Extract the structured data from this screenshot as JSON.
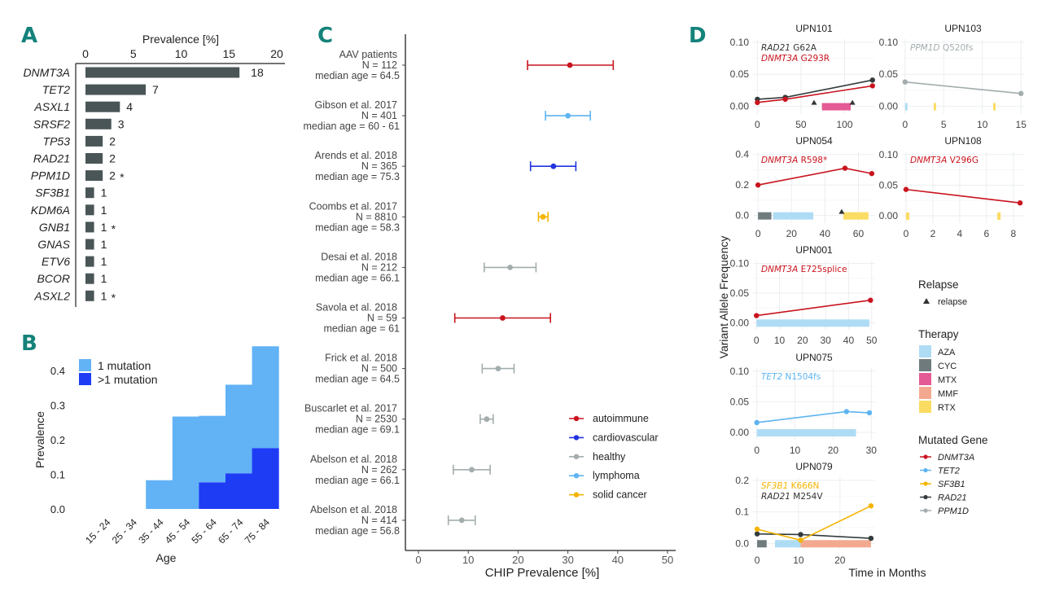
{
  "panel_letters": {
    "a": "A",
    "b": "B",
    "c": "C",
    "d": "D"
  },
  "colors": {
    "bar": "#4a5557",
    "one_mutation": "#62b2f6",
    "multi_mutation": "#1f3cf5",
    "autoimmune": "#c9141e",
    "cardiovascular": "#2233e0",
    "healthy": "#a3adad",
    "lymphoma": "#5db4f0",
    "solid_cancer": "#f5b400",
    "AZA": "#aedcf5",
    "CYC": "#6f7b7d",
    "MTX": "#e45a94",
    "MMF": "#f3a98f",
    "RTX": "#fbdc62",
    "DNMT3A": "#c9141e",
    "TET2": "#5db4f0",
    "SF3B1": "#f5b400",
    "RAD21": "#333b3d",
    "PPM1D": "#a3adad"
  },
  "chart_data": [
    {
      "id": "A",
      "type": "bar",
      "orientation": "horizontal",
      "title": "Prevalence [%]",
      "xlim": [
        0,
        20
      ],
      "xticks": [
        0,
        5,
        10,
        15,
        20
      ],
      "categories": [
        "DNMT3A",
        "TET2",
        "ASXL1",
        "SRSF2",
        "TP53",
        "RAD21",
        "PPM1D",
        "SF3B1",
        "KDM6A",
        "GNB1",
        "GNAS",
        "ETV6",
        "BCOR",
        "ASXL2"
      ],
      "values": [
        16.1,
        6.3,
        3.6,
        2.7,
        1.8,
        1.8,
        1.8,
        0.9,
        0.9,
        0.9,
        0.9,
        0.9,
        0.9,
        0.9
      ],
      "counts": [
        "18",
        "7",
        "4",
        "3",
        "2",
        "2",
        "2",
        "1",
        "1",
        "1",
        "1",
        "1",
        "1",
        "1"
      ],
      "asterisk": [
        false,
        false,
        false,
        false,
        false,
        false,
        true,
        false,
        false,
        true,
        false,
        false,
        false,
        true
      ]
    },
    {
      "id": "B",
      "type": "bar",
      "stacked": true,
      "xlabel": "Age",
      "ylabel": "Prevalence",
      "ylim": [
        0,
        0.47
      ],
      "yticks": [
        "0.0",
        "0.1",
        "0.2",
        "0.3",
        "0.4"
      ],
      "categories": [
        "15 - 24",
        "25 - 34",
        "35 - 44",
        "45 - 54",
        "55 - 64",
        "65 - 74",
        "75 - 84"
      ],
      "series": [
        {
          "name": ">1 mutation",
          "values": [
            0,
            0,
            0,
            0,
            0.077,
            0.103,
            0.176
          ]
        },
        {
          "name": "1 mutation",
          "values": [
            0,
            0,
            0.083,
            0.267,
            0.192,
            0.256,
            0.294
          ]
        }
      ],
      "legend": [
        "1 mutation",
        ">1 mutation"
      ],
      "legend_position": "top-left"
    },
    {
      "id": "C",
      "type": "scatter",
      "subtype": "forest",
      "xlabel": "CHIP Prevalence [%]",
      "xlim": [
        -2.5,
        52
      ],
      "xticks": [
        0,
        10,
        20,
        30,
        40,
        50
      ],
      "studies": [
        {
          "name": "AAV patients",
          "n": "N =  112",
          "age": "median age = 64.5",
          "est": 30.4,
          "lo": 21.9,
          "hi": 39.1,
          "group": "autoimmune"
        },
        {
          "name": "Gibson et al. 2017",
          "n": "N =  401",
          "age": "median age = 60 - 61",
          "est": 30.0,
          "lo": 25.5,
          "hi": 34.5,
          "group": "lymphoma"
        },
        {
          "name": "Arends et al. 2018",
          "n": "N =  365",
          "age": "median age = 75.3",
          "est": 27.1,
          "lo": 22.5,
          "hi": 31.6,
          "group": "cardiovascular"
        },
        {
          "name": "Coombs et al. 2017",
          "n": "N =  8810",
          "age": "median age = 58.3",
          "est": 25.0,
          "lo": 24.1,
          "hi": 26.0,
          "group": "solid_cancer"
        },
        {
          "name": "Desai et al. 2018",
          "n": "N =  212",
          "age": "median age = 66.1",
          "est": 18.4,
          "lo": 13.2,
          "hi": 23.6,
          "group": "healthy"
        },
        {
          "name": "Savola et al. 2018",
          "n": "N =  59",
          "age": "median age = 61",
          "est": 16.9,
          "lo": 7.3,
          "hi": 26.5,
          "group": "autoimmune"
        },
        {
          "name": "Frick et al. 2018",
          "n": "N =  500",
          "age": "median age = 64.5",
          "est": 16.0,
          "lo": 12.8,
          "hi": 19.2,
          "group": "healthy"
        },
        {
          "name": "Buscarlet et al. 2017",
          "n": "N =  2530",
          "age": "median age = 69.1",
          "est": 13.7,
          "lo": 12.4,
          "hi": 15.0,
          "group": "healthy"
        },
        {
          "name": "Abelson et al. 2018",
          "n": "N =  262",
          "age": "median age = 66.1",
          "est": 10.7,
          "lo": 7.0,
          "hi": 14.4,
          "group": "healthy"
        },
        {
          "name": "Abelson et al. 2018",
          "n": "N =  414",
          "age": "median age = 56.8",
          "est": 8.7,
          "lo": 6.0,
          "hi": 11.4,
          "group": "healthy"
        }
      ],
      "legend": [
        {
          "key": "autoimmune",
          "label": "autoimmune"
        },
        {
          "key": "cardiovascular",
          "label": "cardiovascular"
        },
        {
          "key": "healthy",
          "label": "healthy"
        },
        {
          "key": "lymphoma",
          "label": "lymphoma"
        },
        {
          "key": "solid_cancer",
          "label": "solid cancer"
        }
      ],
      "legend_position": "bottom-right"
    },
    {
      "id": "D",
      "type": "line",
      "xlabel": "Time in Months",
      "ylabel": "Variant Allele Frequency",
      "panels": [
        {
          "title": "UPN101",
          "xlim": [
            -5,
            135
          ],
          "xticks": [
            0,
            50,
            100
          ],
          "ylim": [
            -0.012,
            0.105
          ],
          "yticks": [
            "0.00",
            "0.05",
            "0.10"
          ],
          "ytickvals": [
            0,
            0.05,
            0.1
          ],
          "labels": [
            {
              "gene": "RAD21",
              "mut": "G62A",
              "color_key": "RAD21_text"
            },
            {
              "gene": "DNMT3A",
              "mut": "G293R",
              "color_key": "DNMT3A"
            }
          ],
          "series": [
            {
              "gene": "RAD21",
              "x": [
                0,
                32,
                132
              ],
              "y": [
                0.011,
                0.014,
                0.041
              ]
            },
            {
              "gene": "DNMT3A",
              "x": [
                0,
                32,
                132
              ],
              "y": [
                0.006,
                0.011,
                0.032
              ]
            }
          ],
          "therapy": [
            {
              "drug": "MTX",
              "start": 74,
              "end": 107
            }
          ],
          "relapse": [
            65,
            109
          ]
        },
        {
          "title": "UPN103",
          "xlim": [
            -0.4,
            15.4
          ],
          "xticks": [
            0,
            5,
            10,
            15
          ],
          "ylim": [
            -0.012,
            0.105
          ],
          "yticks": [
            "0.00",
            "0.05",
            "0.10"
          ],
          "ytickvals": [
            0,
            0.05,
            0.1
          ],
          "labels": [
            {
              "gene": "PPM1D",
              "mut": "Q520fs",
              "color_key": "PPM1D"
            }
          ],
          "series": [
            {
              "gene": "PPM1D",
              "x": [
                0,
                15
              ],
              "y": [
                0.038,
                0.02
              ]
            }
          ],
          "therapy": [
            {
              "drug": "AZA",
              "start": 0,
              "end": 0.3
            },
            {
              "drug": "RTX",
              "start": 3.7,
              "end": 4.0
            },
            {
              "drug": "RTX",
              "start": 11.4,
              "end": 11.7
            }
          ],
          "relapse": []
        },
        {
          "title": "UPN054",
          "xlim": [
            -3,
            70
          ],
          "xticks": [
            0,
            20,
            40,
            60
          ],
          "ylim": [
            -0.05,
            0.42
          ],
          "yticks": [
            "0.0",
            "0.2",
            "0.4"
          ],
          "ytickvals": [
            0,
            0.2,
            0.4
          ],
          "labels": [
            {
              "gene": "DNMT3A",
              "mut": "R598*",
              "color_key": "DNMT3A"
            }
          ],
          "series": [
            {
              "gene": "DNMT3A",
              "x": [
                0,
                52,
                68
              ],
              "y": [
                0.2,
                0.31,
                0.275
              ]
            }
          ],
          "therapy": [
            {
              "drug": "CYC",
              "start": 0,
              "end": 8
            },
            {
              "drug": "AZA",
              "start": 9,
              "end": 33
            },
            {
              "drug": "RTX",
              "start": 51,
              "end": 66
            }
          ],
          "relapse": [
            50
          ]
        },
        {
          "title": "UPN108",
          "xlim": [
            -0.3,
            8.8
          ],
          "xticks": [
            0,
            2,
            4,
            6,
            8
          ],
          "ylim": [
            -0.012,
            0.105
          ],
          "yticks": [
            "0.00",
            "0.05",
            "0.10"
          ],
          "ytickvals": [
            0,
            0.05,
            0.1
          ],
          "labels": [
            {
              "gene": "DNMT3A",
              "mut": "V296G",
              "color_key": "DNMT3A"
            }
          ],
          "series": [
            {
              "gene": "DNMT3A",
              "x": [
                0,
                8.5
              ],
              "y": [
                0.043,
                0.021
              ]
            }
          ],
          "therapy": [
            {
              "drug": "RTX",
              "start": 0,
              "end": 0.25
            },
            {
              "drug": "RTX",
              "start": 6.8,
              "end": 7.05
            }
          ],
          "relapse": []
        },
        {
          "title": "UPN001",
          "xlim": [
            -1.5,
            51.5
          ],
          "xticks": [
            0,
            10,
            20,
            30,
            40,
            50
          ],
          "ylim": [
            -0.012,
            0.105
          ],
          "yticks": [
            "0.00",
            "0.05",
            "0.10"
          ],
          "ytickvals": [
            0,
            0.05,
            0.1
          ],
          "labels": [
            {
              "gene": "DNMT3A",
              "mut": "E725splice",
              "color_key": "DNMT3A"
            }
          ],
          "series": [
            {
              "gene": "DNMT3A",
              "x": [
                0,
                49.5
              ],
              "y": [
                0.012,
                0.038
              ]
            }
          ],
          "therapy": [
            {
              "drug": "AZA",
              "start": 0,
              "end": 49
            }
          ],
          "relapse": []
        },
        {
          "title": "UPN075",
          "xlim": [
            -1,
            31
          ],
          "xticks": [
            0,
            10,
            20,
            30
          ],
          "ylim": [
            -0.012,
            0.105
          ],
          "yticks": [
            "0.00",
            "0.05",
            "0.10"
          ],
          "ytickvals": [
            0,
            0.05,
            0.1
          ],
          "labels": [
            {
              "gene": "TET2",
              "mut": "N1504fs",
              "color_key": "TET2"
            }
          ],
          "series": [
            {
              "gene": "TET2",
              "x": [
                0,
                23.5,
                29.5
              ],
              "y": [
                0.016,
                0.034,
                0.032
              ]
            }
          ],
          "therapy": [
            {
              "drug": "AZA",
              "start": 0,
              "end": 26
            }
          ],
          "relapse": []
        },
        {
          "title": "UPN079",
          "xlim": [
            -1,
            28.5
          ],
          "xticks": [
            0,
            10,
            20
          ],
          "ylim": [
            -0.02,
            0.21
          ],
          "yticks": [
            "0.0",
            "0.1",
            "0.2"
          ],
          "ytickvals": [
            0,
            0.1,
            0.2
          ],
          "labels": [
            {
              "gene": "SF3B1",
              "mut": "K666N",
              "color_key": "SF3B1"
            },
            {
              "gene": "RAD21",
              "mut": "M254V",
              "color_key": "RAD21_text"
            }
          ],
          "series": [
            {
              "gene": "RAD21",
              "x": [
                0,
                10.5,
                27.5
              ],
              "y": [
                0.03,
                0.028,
                0.016
              ]
            },
            {
              "gene": "SF3B1",
              "x": [
                0,
                10.5,
                27.5
              ],
              "y": [
                0.045,
                0.01,
                0.119
              ]
            }
          ],
          "therapy": [
            {
              "drug": "CYC",
              "start": 0,
              "end": 2.3
            },
            {
              "drug": "AZA",
              "start": 4.3,
              "end": 10.5
            },
            {
              "drug": "MMF",
              "start": 10.5,
              "end": 27.5
            }
          ],
          "relapse": []
        }
      ],
      "legends": {
        "relapse": {
          "title": "Relapse",
          "items": [
            "relapse"
          ]
        },
        "therapy": {
          "title": "Therapy",
          "items": [
            "AZA",
            "CYC",
            "MTX",
            "MMF",
            "RTX"
          ]
        },
        "genes": {
          "title": "Mutated Gene",
          "items": [
            "DNMT3A",
            "TET2",
            "SF3B1",
            "RAD21",
            "PPM1D"
          ]
        }
      }
    }
  ]
}
